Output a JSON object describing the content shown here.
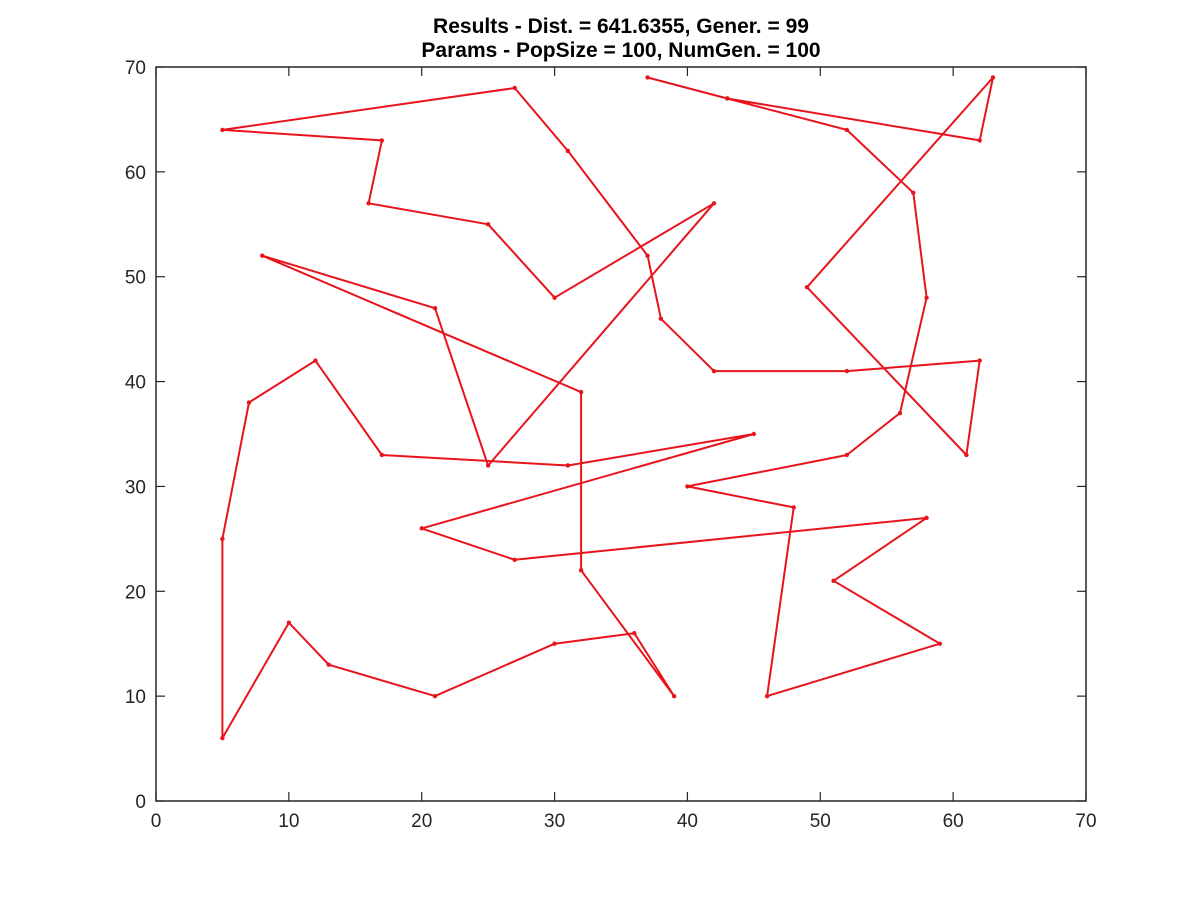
{
  "chart_data": {
    "type": "line",
    "title": [
      "Results - Dist. = 641.6355, Gener. = 99",
      "Params - PopSize = 100, NumGen. = 100"
    ],
    "xlabel": "",
    "ylabel": "",
    "xlim": [
      0,
      70
    ],
    "ylim": [
      0,
      70
    ],
    "xticks": [
      0,
      10,
      20,
      30,
      40,
      50,
      60,
      70
    ],
    "yticks": [
      0,
      10,
      20,
      30,
      40,
      50,
      60,
      70
    ],
    "grid": false,
    "series": [
      {
        "color": "#e8141c",
        "points": [
          [
            37,
            69
          ],
          [
            43,
            67
          ],
          [
            62,
            63
          ],
          [
            63,
            69
          ],
          [
            49,
            49
          ],
          [
            61,
            33
          ],
          [
            62,
            42
          ],
          [
            52,
            41
          ],
          [
            42,
            41
          ],
          [
            38,
            46
          ],
          [
            37,
            52
          ],
          [
            31,
            62
          ],
          [
            27,
            68
          ],
          [
            5,
            64
          ],
          [
            17,
            63
          ],
          [
            16,
            57
          ],
          [
            25,
            55
          ],
          [
            30,
            48
          ],
          [
            42,
            57
          ],
          [
            25,
            32
          ],
          [
            21,
            47
          ],
          [
            8,
            52
          ],
          [
            32,
            39
          ],
          [
            32,
            22
          ],
          [
            39,
            10
          ],
          [
            36,
            16
          ],
          [
            30,
            15
          ],
          [
            21,
            10
          ],
          [
            13,
            13
          ],
          [
            10,
            17
          ],
          [
            5,
            6
          ],
          [
            5,
            25
          ],
          [
            7,
            38
          ],
          [
            12,
            42
          ],
          [
            17,
            33
          ],
          [
            31,
            32
          ],
          [
            45,
            35
          ],
          [
            20,
            26
          ],
          [
            27,
            23
          ],
          [
            58,
            27
          ],
          [
            51,
            21
          ],
          [
            59,
            15
          ],
          [
            46,
            10
          ],
          [
            48,
            28
          ],
          [
            40,
            30
          ],
          [
            52,
            33
          ],
          [
            56,
            37
          ],
          [
            58,
            48
          ],
          [
            57,
            58
          ],
          [
            52,
            64
          ],
          [
            43,
            67
          ]
        ]
      }
    ]
  }
}
